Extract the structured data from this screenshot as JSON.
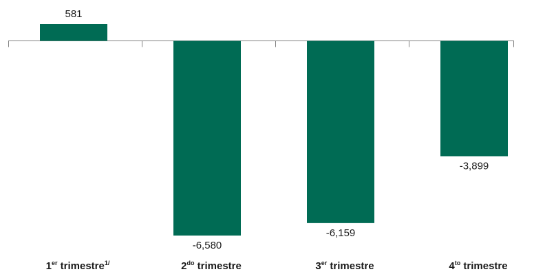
{
  "chart_data": {
    "type": "bar",
    "categories": [
      {
        "base": "1",
        "sup": "er",
        "rest": " trimestre",
        "note": "1/"
      },
      {
        "base": "2",
        "sup": "do",
        "rest": " trimestre",
        "note": ""
      },
      {
        "base": "3",
        "sup": "er",
        "rest": " trimestre",
        "note": ""
      },
      {
        "base": "4",
        "sup": "to",
        "rest": " trimestre",
        "note": ""
      }
    ],
    "values": [
      581,
      -6580,
      -6159,
      -3899
    ],
    "value_labels": [
      "581",
      "-6,580",
      "-6,159",
      "-3,899"
    ],
    "ylim": [
      -6580,
      581
    ],
    "grid": false,
    "bar_color": "#006b54",
    "axis_color": "#808080"
  }
}
